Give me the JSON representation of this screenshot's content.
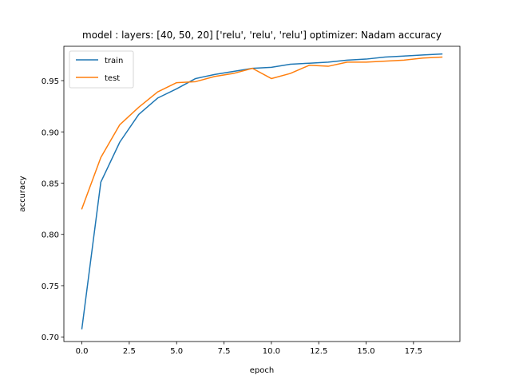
{
  "chart_data": {
    "type": "line",
    "title": "model : layers: [40, 50, 20] ['relu', 'relu', 'relu'] optimizer: Nadam accuracy",
    "xlabel": "epoch",
    "ylabel": "accuracy",
    "xlim": [
      -0.95,
      19.95
    ],
    "ylim": [
      0.6955,
      0.9835
    ],
    "xticks": [
      0.0,
      2.5,
      5.0,
      7.5,
      10.0,
      12.5,
      15.0,
      17.5
    ],
    "xtick_labels": [
      "0.0",
      "2.5",
      "5.0",
      "7.5",
      "10.0",
      "12.5",
      "15.0",
      "17.5"
    ],
    "yticks": [
      0.7,
      0.75,
      0.8,
      0.85,
      0.9,
      0.95
    ],
    "ytick_labels": [
      "0.70",
      "0.75",
      "0.80",
      "0.85",
      "0.90",
      "0.95"
    ],
    "legend_position": "top-left",
    "grid": false,
    "x": [
      0,
      1,
      2,
      3,
      4,
      5,
      6,
      7,
      8,
      9,
      10,
      11,
      12,
      13,
      14,
      15,
      16,
      17,
      18,
      19
    ],
    "series": [
      {
        "name": "train",
        "color": "#1f77b4",
        "values": [
          0.708,
          0.851,
          0.89,
          0.917,
          0.933,
          0.942,
          0.952,
          0.956,
          0.959,
          0.962,
          0.963,
          0.966,
          0.967,
          0.968,
          0.97,
          0.971,
          0.973,
          0.974,
          0.975,
          0.976
        ]
      },
      {
        "name": "test",
        "color": "#ff7f0e",
        "values": [
          0.825,
          0.875,
          0.907,
          0.924,
          0.939,
          0.948,
          0.949,
          0.954,
          0.957,
          0.962,
          0.952,
          0.957,
          0.965,
          0.964,
          0.968,
          0.968,
          0.969,
          0.97,
          0.972,
          0.973
        ]
      }
    ]
  }
}
